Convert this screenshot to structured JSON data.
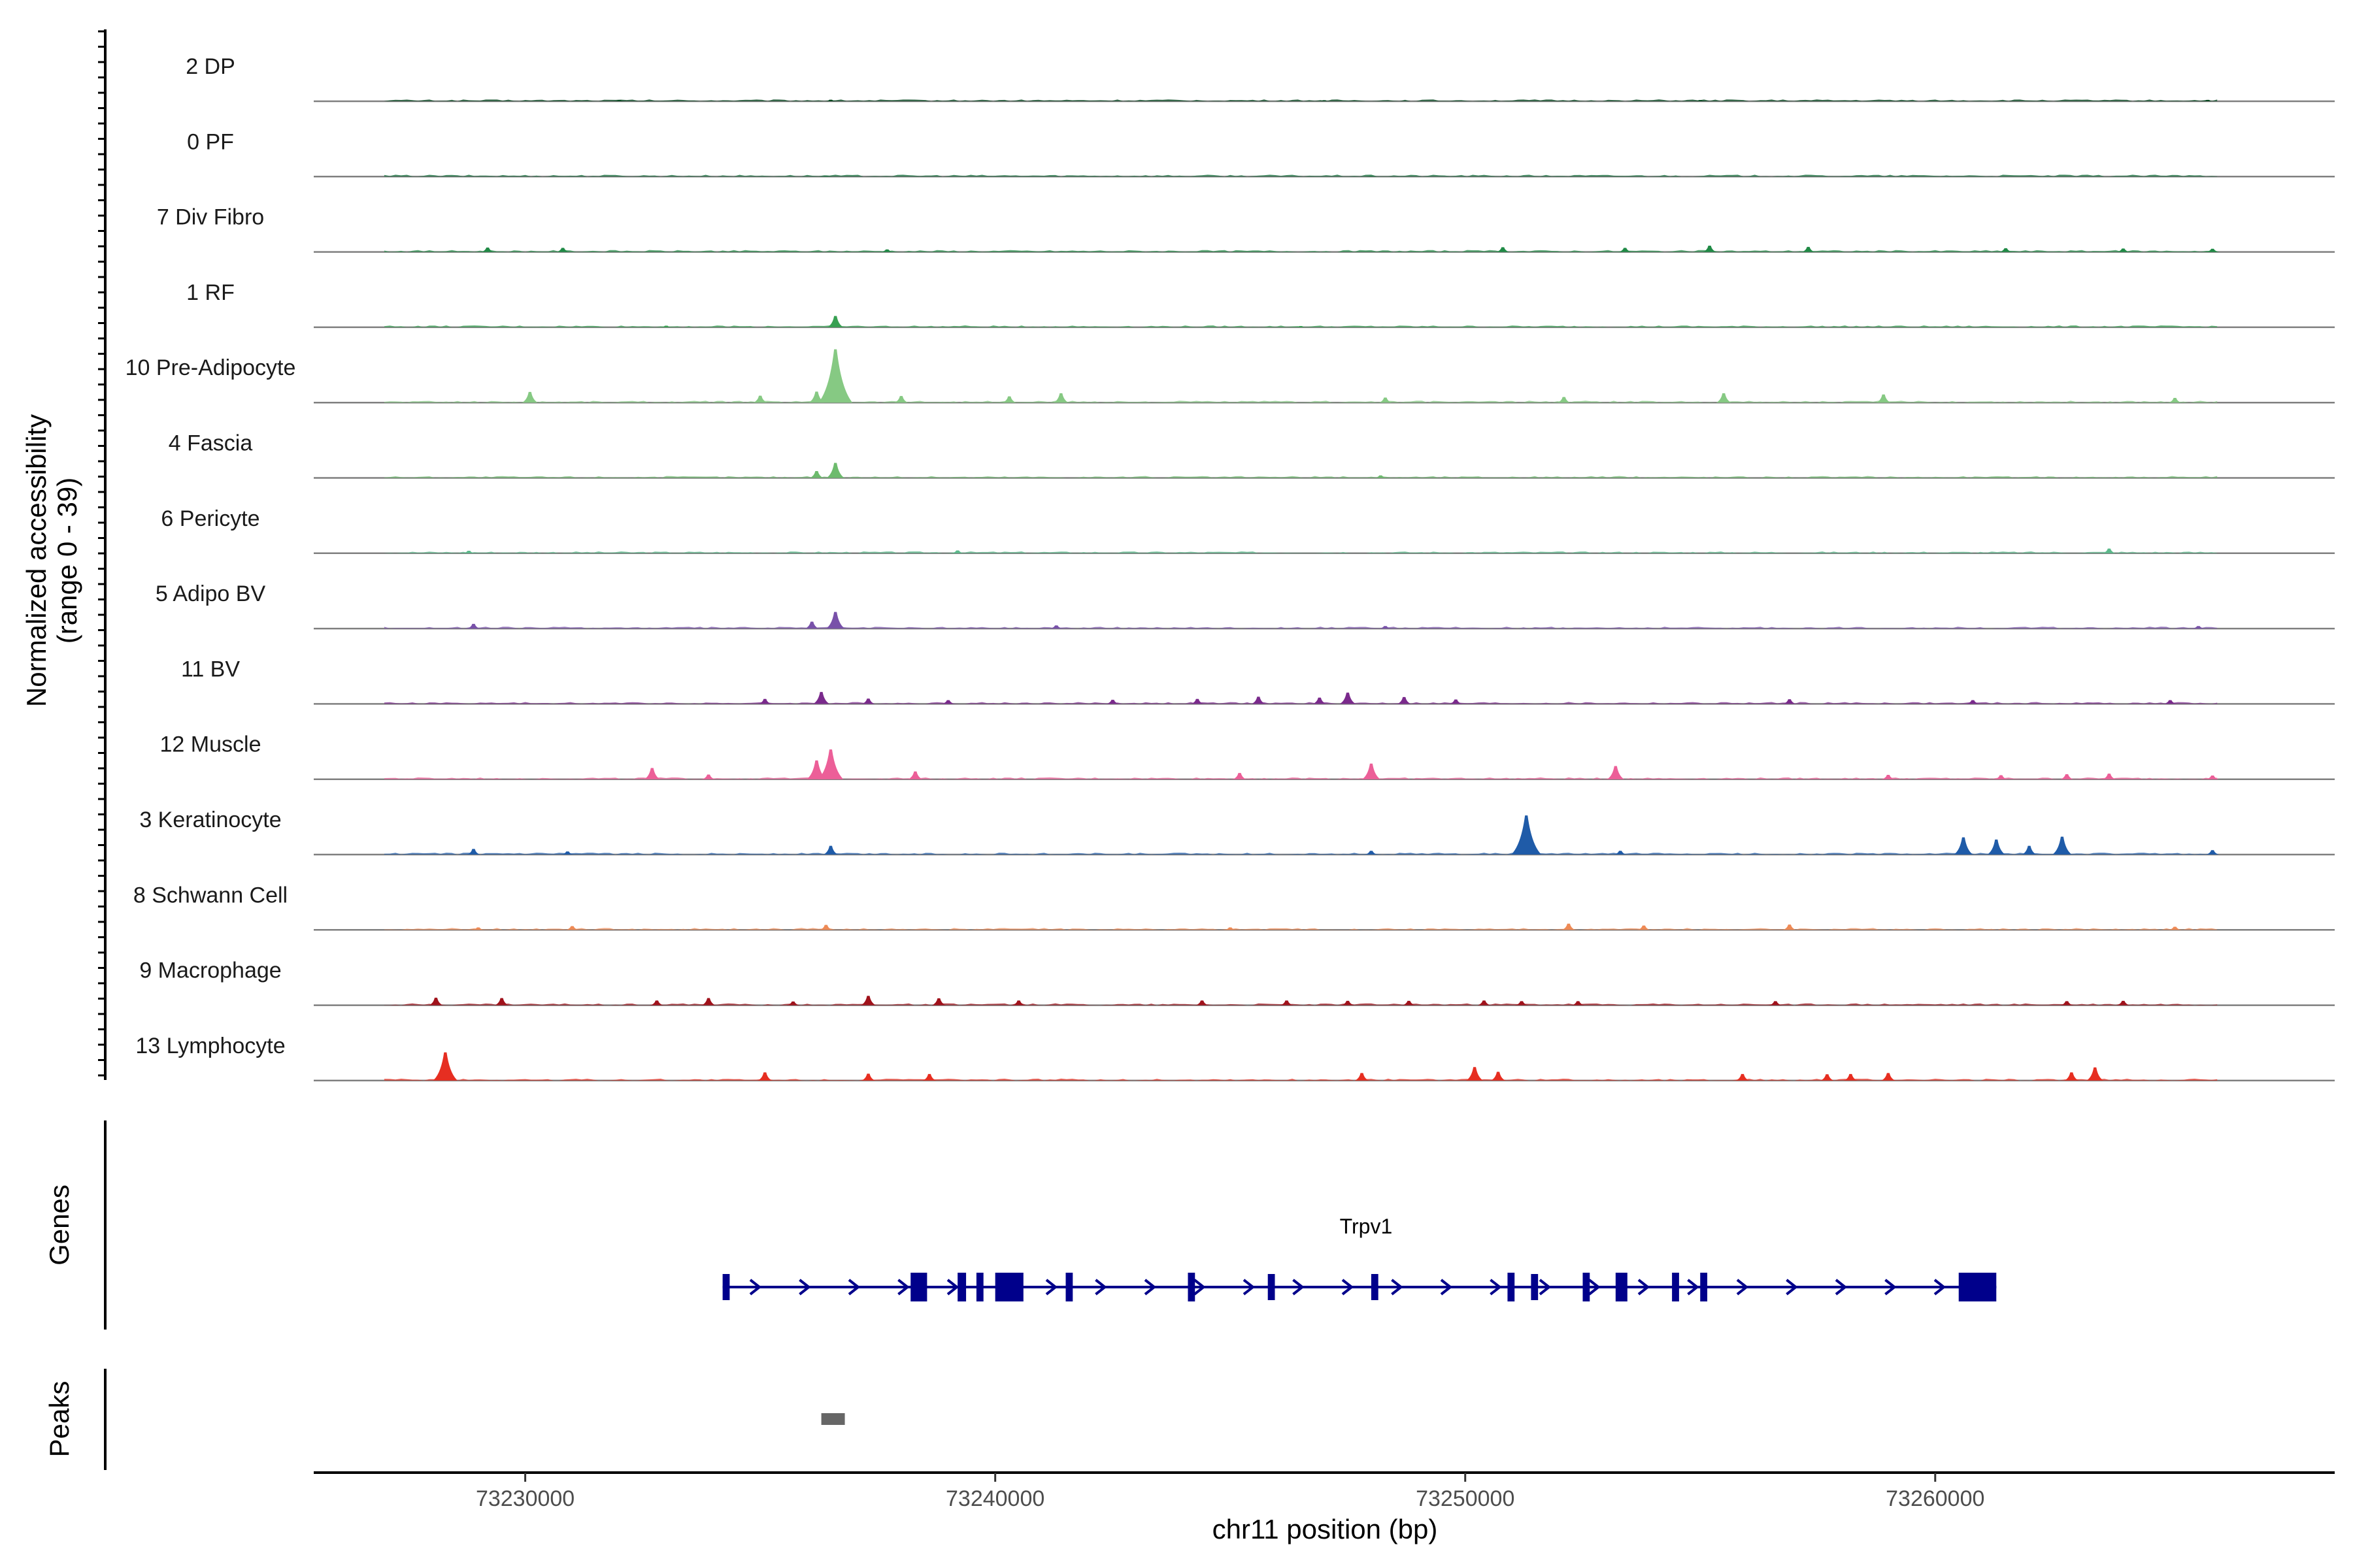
{
  "chart_data": {
    "type": "area",
    "region": {
      "start": 73225500,
      "end": 73268500
    },
    "x_ticks": [
      73230000,
      73240000,
      73250000,
      73260000
    ],
    "x_tick_labels": [
      "73230000",
      "73240000",
      "73250000",
      "73260000"
    ],
    "xlabel": "chr11 position (bp)",
    "ylabel_line1": "Normalized accessibility",
    "ylabel_line2": "(range 0 - 39)",
    "ylim": [
      0,
      39
    ],
    "genes_label": "Genes",
    "peaks_label": "Peaks",
    "series": [
      {
        "name": "2 DP",
        "color": "#00441b",
        "peaks": [
          [
            73232000,
            0.4
          ],
          [
            73236500,
            0.5
          ],
          [
            73247000,
            0.35
          ],
          [
            73255000,
            0.4
          ],
          [
            73265800,
            0.45
          ]
        ]
      },
      {
        "name": "0 PF",
        "color": "#0b6b35",
        "peaks": [
          [
            73236400,
            0.3
          ],
          [
            73248000,
            0.25
          ]
        ]
      },
      {
        "name": "7 Div Fibro",
        "color": "#1f8a45",
        "peaks": [
          [
            73229200,
            1.4
          ],
          [
            73230800,
            1.3
          ],
          [
            73237700,
            0.8
          ],
          [
            73250800,
            1.5
          ],
          [
            73253400,
            1.3
          ],
          [
            73255200,
            2.0
          ],
          [
            73257300,
            1.6
          ],
          [
            73261500,
            1.2
          ],
          [
            73264000,
            1.1
          ],
          [
            73265900,
            1.0
          ]
        ]
      },
      {
        "name": "1 RF",
        "color": "#38a052",
        "peaks": [
          [
            73236600,
            3.6
          ],
          [
            73233000,
            0.5
          ],
          [
            73246500,
            0.4
          ]
        ]
      },
      {
        "name": "10 Pre-Adipocyte",
        "color": "#86c983",
        "peaks": [
          [
            73236600,
            17.0
          ],
          [
            73236200,
            3.5
          ],
          [
            73230100,
            3.4
          ],
          [
            73235000,
            2.2
          ],
          [
            73238000,
            2.1
          ],
          [
            73241400,
            3.0
          ],
          [
            73240300,
            2.0
          ],
          [
            73255500,
            3.0
          ],
          [
            73258900,
            2.6
          ],
          [
            73252100,
            1.8
          ],
          [
            73248300,
            1.6
          ],
          [
            73265100,
            1.5
          ]
        ]
      },
      {
        "name": "4 Fascia",
        "color": "#6dbb6d",
        "peaks": [
          [
            73236600,
            4.8
          ],
          [
            73236200,
            2.2
          ],
          [
            73248200,
            0.8
          ]
        ]
      },
      {
        "name": "6 Pericyte",
        "color": "#5bb98b",
        "peaks": [
          [
            73263700,
            1.5
          ],
          [
            73228800,
            0.8
          ],
          [
            73239200,
            0.9
          ]
        ]
      },
      {
        "name": "5 Adipo BV",
        "color": "#7851a9",
        "peaks": [
          [
            73236600,
            5.3
          ],
          [
            73236100,
            2.2
          ],
          [
            73228900,
            1.5
          ],
          [
            73241300,
            1.0
          ],
          [
            73248300,
            0.8
          ],
          [
            73265600,
            0.8
          ]
        ]
      },
      {
        "name": "11 BV",
        "color": "#7a2a8c",
        "peaks": [
          [
            73236300,
            3.8
          ],
          [
            73235100,
            1.6
          ],
          [
            73237300,
            1.7
          ],
          [
            73239000,
            1.2
          ],
          [
            73242500,
            1.3
          ],
          [
            73244300,
            1.6
          ],
          [
            73245600,
            2.3
          ],
          [
            73246900,
            2.0
          ],
          [
            73247500,
            3.6
          ],
          [
            73248700,
            2.2
          ],
          [
            73249800,
            1.4
          ],
          [
            73256900,
            1.5
          ],
          [
            73260800,
            1.2
          ],
          [
            73265000,
            1.2
          ]
        ]
      },
      {
        "name": "12 Muscle",
        "color": "#ec5f98",
        "peaks": [
          [
            73236500,
            9.5
          ],
          [
            73236200,
            6.0
          ],
          [
            73232700,
            3.6
          ],
          [
            73233900,
            1.5
          ],
          [
            73238300,
            2.5
          ],
          [
            73245200,
            2.0
          ],
          [
            73248000,
            5.0
          ],
          [
            73253200,
            4.2
          ],
          [
            73259000,
            1.4
          ],
          [
            73261400,
            1.3
          ],
          [
            73262800,
            1.6
          ],
          [
            73263700,
            1.8
          ],
          [
            73265900,
            1.2
          ]
        ]
      },
      {
        "name": "3 Keratinocyte",
        "color": "#1f5ba8",
        "peaks": [
          [
            73251300,
            12.5
          ],
          [
            73260600,
            5.5
          ],
          [
            73261300,
            4.8
          ],
          [
            73262700,
            5.7
          ],
          [
            73236500,
            2.8
          ],
          [
            73228900,
            1.8
          ],
          [
            73230900,
            1.0
          ],
          [
            73248000,
            1.2
          ],
          [
            73253300,
            1.2
          ],
          [
            73265900,
            1.4
          ],
          [
            73262000,
            2.8
          ]
        ]
      },
      {
        "name": "8 Schwann Cell",
        "color": "#ee8a55",
        "peaks": [
          [
            73236400,
            1.6
          ],
          [
            73231000,
            1.2
          ],
          [
            73252200,
            2.0
          ],
          [
            73253800,
            1.4
          ],
          [
            73256900,
            1.7
          ],
          [
            73265100,
            1.0
          ],
          [
            73229000,
            0.8
          ],
          [
            73245000,
            0.8
          ]
        ]
      },
      {
        "name": "9 Macrophage",
        "color": "#a0121b",
        "peaks": [
          [
            73228100,
            2.4
          ],
          [
            73229500,
            2.3
          ],
          [
            73232800,
            1.5
          ],
          [
            73233900,
            2.3
          ],
          [
            73235700,
            1.2
          ],
          [
            73237300,
            3.0
          ],
          [
            73238800,
            2.2
          ],
          [
            73240500,
            1.5
          ],
          [
            73244400,
            1.5
          ],
          [
            73246200,
            1.5
          ],
          [
            73247500,
            1.4
          ],
          [
            73248800,
            1.4
          ],
          [
            73250400,
            1.5
          ],
          [
            73251200,
            1.3
          ],
          [
            73252400,
            1.3
          ],
          [
            73256600,
            1.3
          ],
          [
            73262800,
            1.3
          ],
          [
            73264000,
            1.4
          ]
        ]
      },
      {
        "name": "13 Lymphocyte",
        "color": "#e62e21",
        "peaks": [
          [
            73228300,
            9.0
          ],
          [
            73235100,
            2.6
          ],
          [
            73237300,
            2.2
          ],
          [
            73238600,
            2.1
          ],
          [
            73247800,
            2.4
          ],
          [
            73250200,
            4.3
          ],
          [
            73250700,
            2.8
          ],
          [
            73255900,
            2.1
          ],
          [
            73257700,
            2.0
          ],
          [
            73258200,
            2.1
          ],
          [
            73259000,
            2.4
          ],
          [
            73262900,
            2.6
          ],
          [
            73263400,
            4.2
          ]
        ]
      }
    ],
    "gene": {
      "name": "Trpv1",
      "color": "#00008b",
      "start": 73234200,
      "end": 73261300,
      "strand": "+",
      "exons": [
        [
          73234200,
          73234350,
          "thin"
        ],
        [
          73238200,
          73238550,
          "wide"
        ],
        [
          73239200,
          73239380,
          "mid"
        ],
        [
          73239600,
          73239750,
          "mid"
        ],
        [
          73240000,
          73240600,
          "wide"
        ],
        [
          73241500,
          73241650,
          "mid"
        ],
        [
          73244100,
          73244250,
          "mid"
        ],
        [
          73245800,
          73245950,
          "thin"
        ],
        [
          73248000,
          73248150,
          "thin"
        ],
        [
          73250900,
          73251050,
          "mid"
        ],
        [
          73251400,
          73251550,
          "thin"
        ],
        [
          73252500,
          73252650,
          "mid"
        ],
        [
          73253200,
          73253450,
          "wide"
        ],
        [
          73254400,
          73254550,
          "mid"
        ],
        [
          73255000,
          73255150,
          "mid"
        ],
        [
          73260500,
          73261300,
          "wide"
        ]
      ]
    },
    "peak_regions": [
      [
        73236300,
        73236800
      ]
    ]
  }
}
